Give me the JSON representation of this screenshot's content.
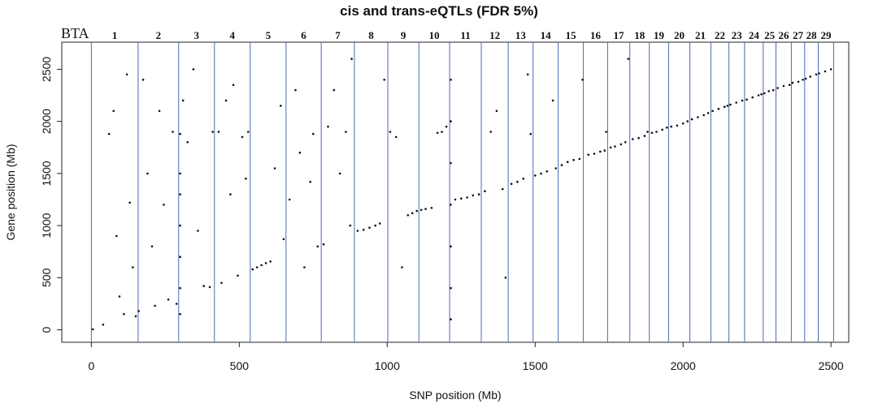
{
  "chart_data": {
    "type": "scatter",
    "title": "cis and trans-eQTLs (FDR 5%)",
    "xlabel": "SNP position (Mb)",
    "ylabel": "Gene position (Mb)",
    "xlim": [
      -100,
      2560
    ],
    "ylim": [
      -120,
      2760
    ],
    "xticks": [
      0,
      500,
      1000,
      1500,
      2000,
      2500
    ],
    "yticks": [
      0,
      500,
      1000,
      1500,
      2000,
      2500
    ],
    "grid": false,
    "chromosome_prefix": "BTA",
    "chromosomes": [
      {
        "label": "1",
        "start": 0,
        "end": 158
      },
      {
        "label": "2",
        "start": 158,
        "end": 295
      },
      {
        "label": "3",
        "start": 295,
        "end": 416
      },
      {
        "label": "4",
        "start": 416,
        "end": 537
      },
      {
        "label": "5",
        "start": 537,
        "end": 658
      },
      {
        "label": "6",
        "start": 658,
        "end": 777
      },
      {
        "label": "7",
        "start": 777,
        "end": 889
      },
      {
        "label": "8",
        "start": 889,
        "end": 1002
      },
      {
        "label": "9",
        "start": 1002,
        "end": 1107
      },
      {
        "label": "10",
        "start": 1107,
        "end": 1211
      },
      {
        "label": "11",
        "start": 1211,
        "end": 1318
      },
      {
        "label": "12",
        "start": 1318,
        "end": 1409
      },
      {
        "label": "13",
        "start": 1409,
        "end": 1493
      },
      {
        "label": "14",
        "start": 1493,
        "end": 1578
      },
      {
        "label": "15",
        "start": 1578,
        "end": 1663
      },
      {
        "label": "16",
        "start": 1663,
        "end": 1745
      },
      {
        "label": "17",
        "start": 1745,
        "end": 1820
      },
      {
        "label": "18",
        "start": 1820,
        "end": 1886
      },
      {
        "label": "19",
        "start": 1886,
        "end": 1951
      },
      {
        "label": "20",
        "start": 1951,
        "end": 2023
      },
      {
        "label": "21",
        "start": 2023,
        "end": 2094
      },
      {
        "label": "22",
        "start": 2094,
        "end": 2155
      },
      {
        "label": "23",
        "start": 2155,
        "end": 2208
      },
      {
        "label": "24",
        "start": 2208,
        "end": 2271
      },
      {
        "label": "25",
        "start": 2271,
        "end": 2314
      },
      {
        "label": "26",
        "start": 2314,
        "end": 2366
      },
      {
        "label": "27",
        "start": 2366,
        "end": 2411
      },
      {
        "label": "28",
        "start": 2411,
        "end": 2457
      },
      {
        "label": "29",
        "start": 2457,
        "end": 2509
      }
    ],
    "series": [
      {
        "points": [
          [
            5,
            5
          ],
          [
            40,
            50
          ],
          [
            60,
            1880
          ],
          [
            75,
            2100
          ],
          [
            85,
            900
          ],
          [
            95,
            320
          ],
          [
            110,
            150
          ],
          [
            120,
            2450
          ],
          [
            130,
            1220
          ],
          [
            140,
            600
          ],
          [
            150,
            130
          ],
          [
            160,
            180
          ],
          [
            175,
            2400
          ],
          [
            190,
            1500
          ],
          [
            205,
            800
          ],
          [
            215,
            230
          ],
          [
            230,
            2100
          ],
          [
            245,
            1200
          ],
          [
            260,
            290
          ],
          [
            275,
            1900
          ],
          [
            288,
            250
          ],
          [
            300,
            1880
          ],
          [
            300,
            1500
          ],
          [
            300,
            1300
          ],
          [
            300,
            1000
          ],
          [
            300,
            700
          ],
          [
            300,
            400
          ],
          [
            300,
            150
          ],
          [
            310,
            2200
          ],
          [
            325,
            1800
          ],
          [
            345,
            2500
          ],
          [
            360,
            950
          ],
          [
            380,
            420
          ],
          [
            400,
            410
          ],
          [
            410,
            1900
          ],
          [
            430,
            1900
          ],
          [
            440,
            450
          ],
          [
            455,
            2200
          ],
          [
            470,
            1300
          ],
          [
            480,
            2350
          ],
          [
            495,
            520
          ],
          [
            510,
            1850
          ],
          [
            522,
            1450
          ],
          [
            530,
            1900
          ],
          [
            545,
            580
          ],
          [
            560,
            600
          ],
          [
            575,
            620
          ],
          [
            590,
            640
          ],
          [
            605,
            655
          ],
          [
            620,
            1550
          ],
          [
            640,
            2150
          ],
          [
            650,
            870
          ],
          [
            670,
            1250
          ],
          [
            690,
            2300
          ],
          [
            705,
            1700
          ],
          [
            720,
            600
          ],
          [
            740,
            1420
          ],
          [
            750,
            1880
          ],
          [
            765,
            800
          ],
          [
            785,
            820
          ],
          [
            800,
            1950
          ],
          [
            820,
            2300
          ],
          [
            840,
            1500
          ],
          [
            860,
            1900
          ],
          [
            875,
            1000
          ],
          [
            880,
            2600
          ],
          [
            900,
            950
          ],
          [
            920,
            960
          ],
          [
            940,
            980
          ],
          [
            960,
            1000
          ],
          [
            975,
            1020
          ],
          [
            990,
            2400
          ],
          [
            1010,
            1900
          ],
          [
            1030,
            1850
          ],
          [
            1050,
            600
          ],
          [
            1070,
            1100
          ],
          [
            1085,
            1120
          ],
          [
            1100,
            1140
          ],
          [
            1115,
            1150
          ],
          [
            1130,
            1160
          ],
          [
            1150,
            1170
          ],
          [
            1170,
            1890
          ],
          [
            1185,
            1900
          ],
          [
            1200,
            1950
          ],
          [
            1215,
            1200
          ],
          [
            1215,
            1600
          ],
          [
            1215,
            2000
          ],
          [
            1215,
            2400
          ],
          [
            1215,
            800
          ],
          [
            1215,
            400
          ],
          [
            1215,
            100
          ],
          [
            1230,
            1250
          ],
          [
            1250,
            1260
          ],
          [
            1270,
            1270
          ],
          [
            1290,
            1290
          ],
          [
            1310,
            1300
          ],
          [
            1330,
            1330
          ],
          [
            1350,
            1900
          ],
          [
            1370,
            2100
          ],
          [
            1390,
            1350
          ],
          [
            1400,
            500
          ],
          [
            1420,
            1400
          ],
          [
            1440,
            1420
          ],
          [
            1460,
            1450
          ],
          [
            1475,
            2450
          ],
          [
            1485,
            1880
          ],
          [
            1500,
            1480
          ],
          [
            1520,
            1500
          ],
          [
            1540,
            1520
          ],
          [
            1560,
            2200
          ],
          [
            1570,
            1550
          ],
          [
            1590,
            1580
          ],
          [
            1610,
            1610
          ],
          [
            1630,
            1630
          ],
          [
            1650,
            1640
          ],
          [
            1660,
            2400
          ],
          [
            1680,
            1680
          ],
          [
            1700,
            1690
          ],
          [
            1720,
            1710
          ],
          [
            1735,
            1720
          ],
          [
            1740,
            1900
          ],
          [
            1755,
            1750
          ],
          [
            1770,
            1760
          ],
          [
            1790,
            1780
          ],
          [
            1805,
            1800
          ],
          [
            1815,
            2600
          ],
          [
            1830,
            1830
          ],
          [
            1850,
            1840
          ],
          [
            1870,
            1860
          ],
          [
            1880,
            1900
          ],
          [
            1895,
            1890
          ],
          [
            1910,
            1900
          ],
          [
            1930,
            1920
          ],
          [
            1945,
            1940
          ],
          [
            1960,
            1950
          ],
          [
            1980,
            1960
          ],
          [
            2000,
            1980
          ],
          [
            2015,
            2000
          ],
          [
            2030,
            2020
          ],
          [
            2050,
            2040
          ],
          [
            2070,
            2060
          ],
          [
            2085,
            2080
          ],
          [
            2100,
            2100
          ],
          [
            2120,
            2120
          ],
          [
            2140,
            2140
          ],
          [
            2150,
            2150
          ],
          [
            2160,
            2160
          ],
          [
            2180,
            2180
          ],
          [
            2200,
            2200
          ],
          [
            2215,
            2210
          ],
          [
            2235,
            2230
          ],
          [
            2255,
            2250
          ],
          [
            2265,
            2260
          ],
          [
            2275,
            2270
          ],
          [
            2290,
            2290
          ],
          [
            2305,
            2300
          ],
          [
            2320,
            2320
          ],
          [
            2340,
            2340
          ],
          [
            2360,
            2350
          ],
          [
            2370,
            2370
          ],
          [
            2390,
            2380
          ],
          [
            2405,
            2400
          ],
          [
            2415,
            2410
          ],
          [
            2430,
            2430
          ],
          [
            2450,
            2450
          ],
          [
            2460,
            2460
          ],
          [
            2480,
            2480
          ],
          [
            2500,
            2500
          ]
        ]
      }
    ]
  }
}
